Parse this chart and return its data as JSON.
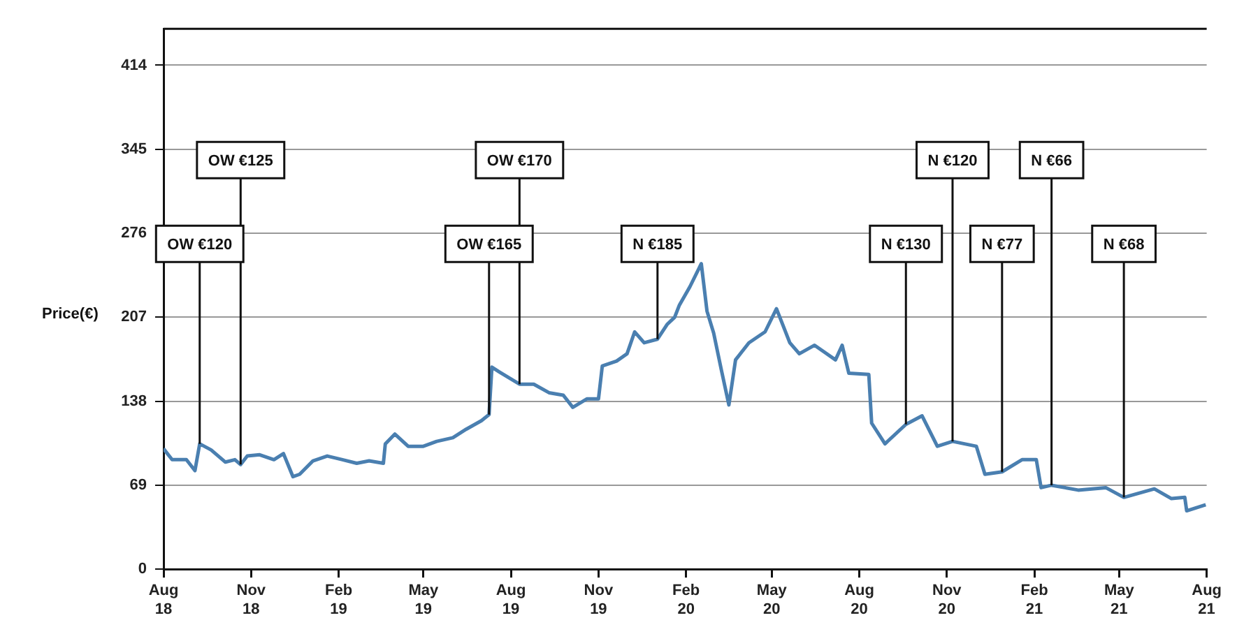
{
  "chart_data": {
    "type": "line",
    "ylabel": "Price(€)",
    "x": [
      "2018-08-01",
      "2018-08-10",
      "2018-08-25",
      "2018-09-03",
      "2018-09-08",
      "2018-09-20",
      "2018-10-05",
      "2018-10-15",
      "2018-10-21",
      "2018-10-28",
      "2018-11-10",
      "2018-11-25",
      "2018-12-05",
      "2018-12-15",
      "2018-12-22",
      "2019-01-05",
      "2019-01-20",
      "2019-02-05",
      "2019-02-20",
      "2019-03-05",
      "2019-03-20",
      "2019-03-22",
      "2019-04-01",
      "2019-04-15",
      "2019-05-01",
      "2019-05-15",
      "2019-06-01",
      "2019-06-15",
      "2019-07-01",
      "2019-07-09",
      "2019-07-12",
      "2019-07-20",
      "2019-08-10",
      "2019-08-25",
      "2019-09-10",
      "2019-09-25",
      "2019-10-05",
      "2019-10-20",
      "2019-11-01",
      "2019-11-05",
      "2019-11-20",
      "2019-12-01",
      "2019-12-09",
      "2019-12-19",
      "2020-01-02",
      "2020-01-12",
      "2020-01-20",
      "2020-01-25",
      "2020-02-05",
      "2020-02-17",
      "2020-02-23",
      "2020-03-01",
      "2020-03-09",
      "2020-03-17",
      "2020-03-24",
      "2020-04-07",
      "2020-04-24",
      "2020-05-06",
      "2020-05-20",
      "2020-05-30",
      "2020-06-15",
      "2020-07-07",
      "2020-07-14",
      "2020-07-21",
      "2020-08-11",
      "2020-08-14",
      "2020-08-28",
      "2020-09-19",
      "2020-10-06",
      "2020-10-22",
      "2020-11-07",
      "2020-12-02",
      "2020-12-11",
      "2020-12-29",
      "2021-01-19",
      "2021-02-03",
      "2021-02-08",
      "2021-02-19",
      "2021-03-19",
      "2021-04-17",
      "2021-05-06",
      "2021-06-07",
      "2021-06-25",
      "2021-07-09",
      "2021-07-11",
      "2021-07-31"
    ],
    "series": [
      {
        "color": "#4a7fb0",
        "values": [
          99,
          90,
          90,
          81,
          103,
          98,
          88,
          90,
          86,
          93,
          94,
          90,
          95,
          76,
          78,
          89,
          93,
          90,
          87,
          89,
          87,
          103,
          111,
          101,
          101,
          105,
          108,
          115,
          122,
          127,
          166,
          162,
          152,
          152,
          145,
          143,
          133,
          140,
          140,
          167,
          171,
          177,
          195,
          186,
          189,
          201,
          207,
          217,
          232,
          251,
          212,
          194,
          164,
          135,
          172,
          186,
          195,
          214,
          186,
          177,
          184,
          172,
          184,
          161,
          160,
          120,
          103,
          119,
          126,
          101,
          105,
          101,
          78,
          80,
          90,
          90,
          67,
          69,
          65,
          67,
          59,
          66,
          58,
          59,
          48,
          53
        ]
      }
    ],
    "xlim": [
      "2018-08-01",
      "2021-08-01"
    ],
    "xticks": [
      {
        "value": "2018-08-01",
        "label": "Aug 18"
      },
      {
        "value": "2018-11-01",
        "label": "Nov 18"
      },
      {
        "value": "2019-02-01",
        "label": "Feb 19"
      },
      {
        "value": "2019-05-01",
        "label": "May 19"
      },
      {
        "value": "2019-08-01",
        "label": "Aug 19"
      },
      {
        "value": "2019-11-01",
        "label": "Nov 19"
      },
      {
        "value": "2020-02-01",
        "label": "Feb 20"
      },
      {
        "value": "2020-05-01",
        "label": "May 20"
      },
      {
        "value": "2020-08-01",
        "label": "Aug 20"
      },
      {
        "value": "2020-11-01",
        "label": "Nov 20"
      },
      {
        "value": "2021-02-01",
        "label": "Feb 21"
      },
      {
        "value": "2021-05-01",
        "label": "May 21"
      },
      {
        "value": "2021-08-01",
        "label": "Aug 21"
      }
    ],
    "ylim": [
      0,
      444
    ],
    "yticks": [
      0,
      69,
      138,
      207,
      276,
      345,
      414
    ],
    "grid": "y",
    "legend": false,
    "marker": "none",
    "line_style": "solid",
    "annotations": [
      {
        "text": "OW €120",
        "x": "2018-09-08",
        "y": 103
      },
      {
        "text": "OW €125",
        "x": "2018-10-21",
        "y": 86
      },
      {
        "text": "OW €165",
        "x": "2019-07-09",
        "y": 127
      },
      {
        "text": "OW €170",
        "x": "2019-08-10",
        "y": 152
      },
      {
        "text": "N €185",
        "x": "2020-01-02",
        "y": 189
      },
      {
        "text": "N €130",
        "x": "2020-09-19",
        "y": 119
      },
      {
        "text": "N €120",
        "x": "2020-11-07",
        "y": 105
      },
      {
        "text": "N €77",
        "x": "2020-12-29",
        "y": 80
      },
      {
        "text": "N €66",
        "x": "2021-02-19",
        "y": 69
      },
      {
        "text": "N €68",
        "x": "2021-05-06",
        "y": 59
      }
    ]
  }
}
